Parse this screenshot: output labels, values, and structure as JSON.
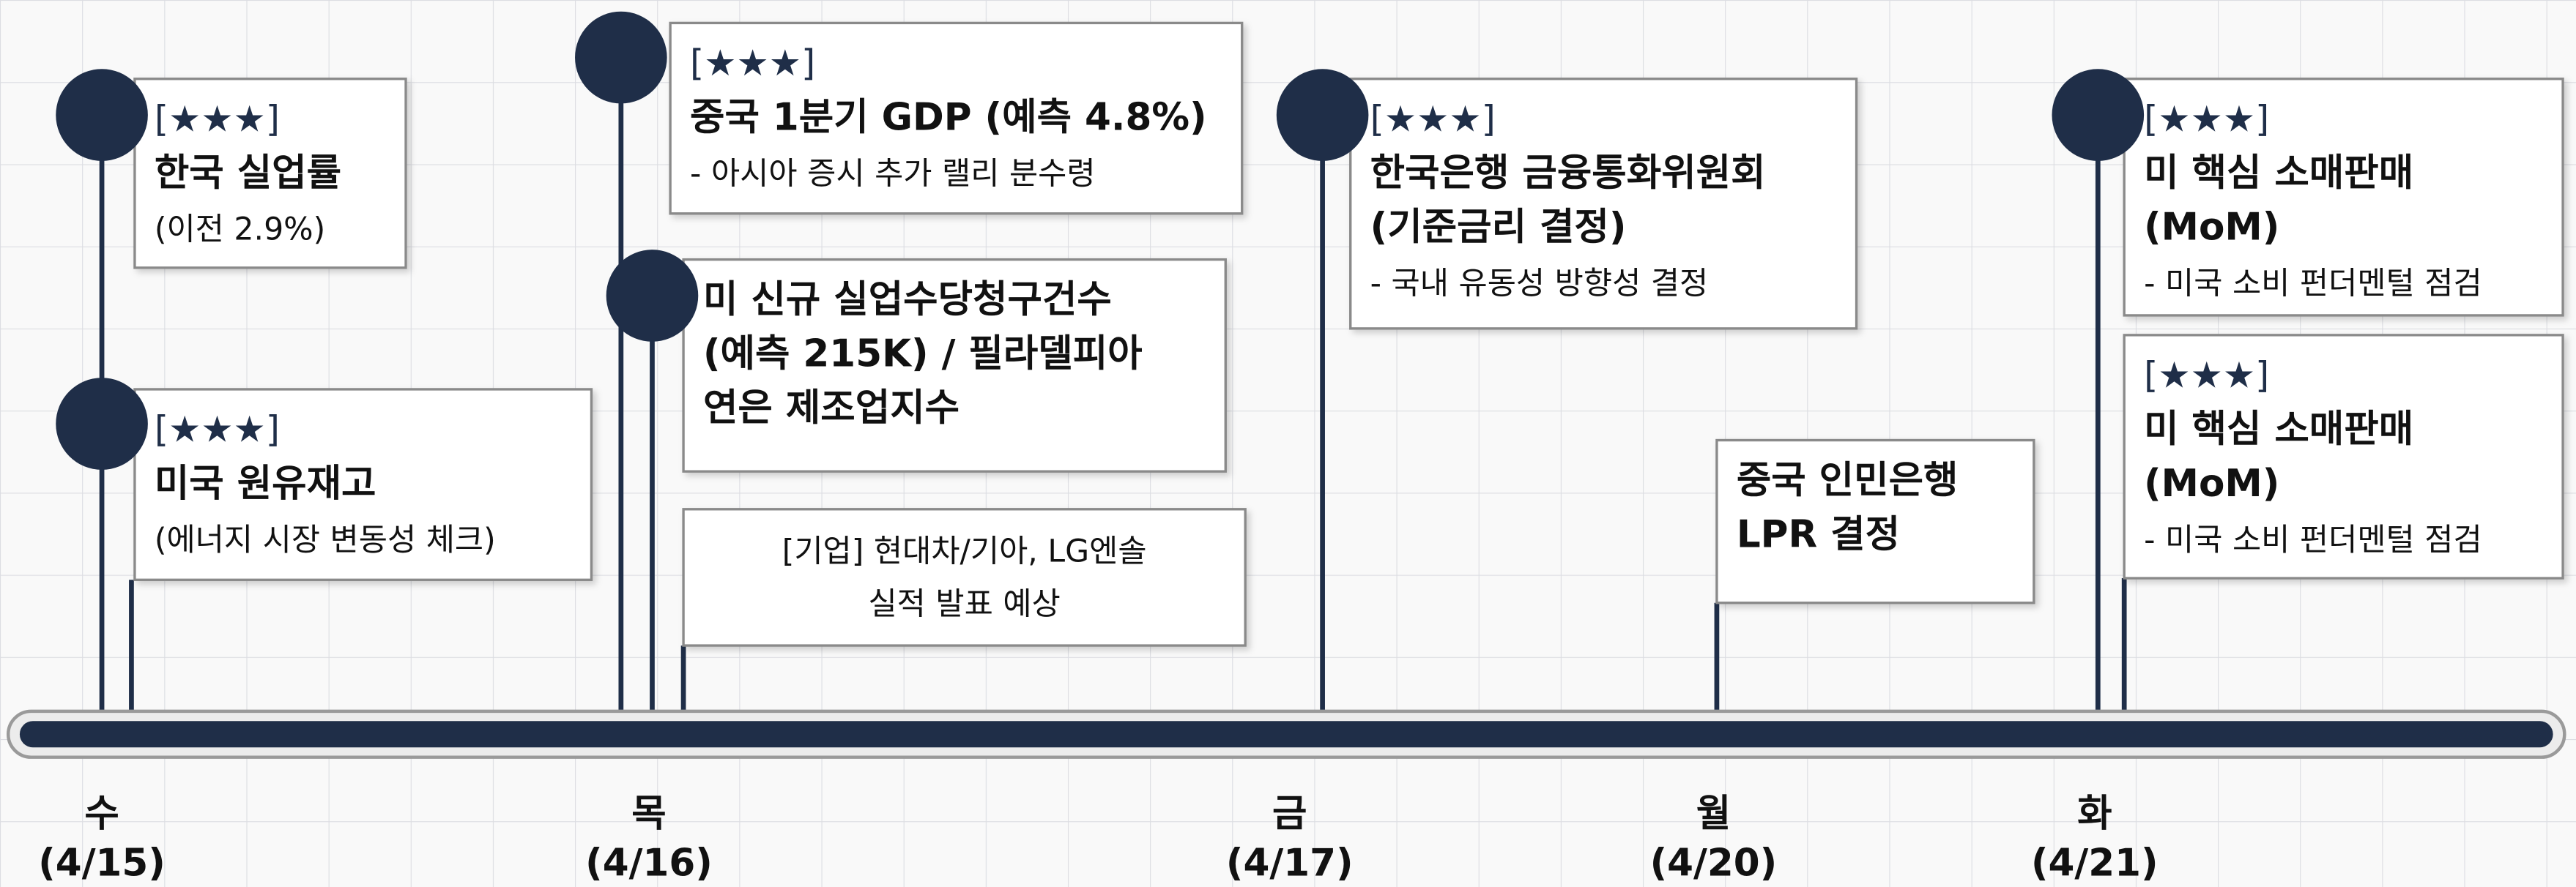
{
  "days": [
    {
      "weekday": "수",
      "date": "(4/15)"
    },
    {
      "weekday": "목",
      "date": "(4/16)"
    },
    {
      "weekday": "금",
      "date": "(4/17)"
    },
    {
      "weekday": "월",
      "date": "(4/20)"
    },
    {
      "weekday": "화",
      "date": "(4/21)"
    }
  ],
  "events": [
    {
      "rating": "[★★★]",
      "title": [
        "한국 실업률"
      ],
      "note": [
        "(이전 2.9%)"
      ]
    },
    {
      "rating": "[★★★]",
      "title": [
        "미국 원유재고"
      ],
      "note": [
        "(에너지 시장 변동성 체크)"
      ]
    },
    {
      "rating": "[★★★]",
      "title": [
        "중국 1분기 GDP (예측 4.8%)"
      ],
      "note": [
        "- 아시아 증시 추가 랠리 분수령"
      ]
    },
    {
      "title": [
        "미 신규 실업수당청구건수",
        "(예측 215K) / 필라델피아",
        "연은 제조업지수"
      ]
    },
    {
      "note": [
        "[기업] 현대차/기아, LG엔솔",
        "실적 발표 예상"
      ]
    },
    {
      "rating": "[★★★]",
      "title": [
        "한국은행 금융통화위원회",
        "(기준금리 결정)"
      ],
      "note": [
        "- 국내 유동성 방향성 결정"
      ]
    },
    {
      "title": [
        "중국 인민은행",
        "LPR 결정"
      ]
    },
    {
      "rating": "[★★★]",
      "title": [
        "미 핵심 소매판매",
        "(MoM)"
      ],
      "note": [
        "- 미국 소비 펀더멘털 점검"
      ]
    },
    {
      "rating": "[★★★]",
      "title": [
        "미 핵심 소매판매",
        "(MoM)"
      ],
      "note": [
        "- 미국 소비 펀더멘털 점검"
      ]
    }
  ]
}
